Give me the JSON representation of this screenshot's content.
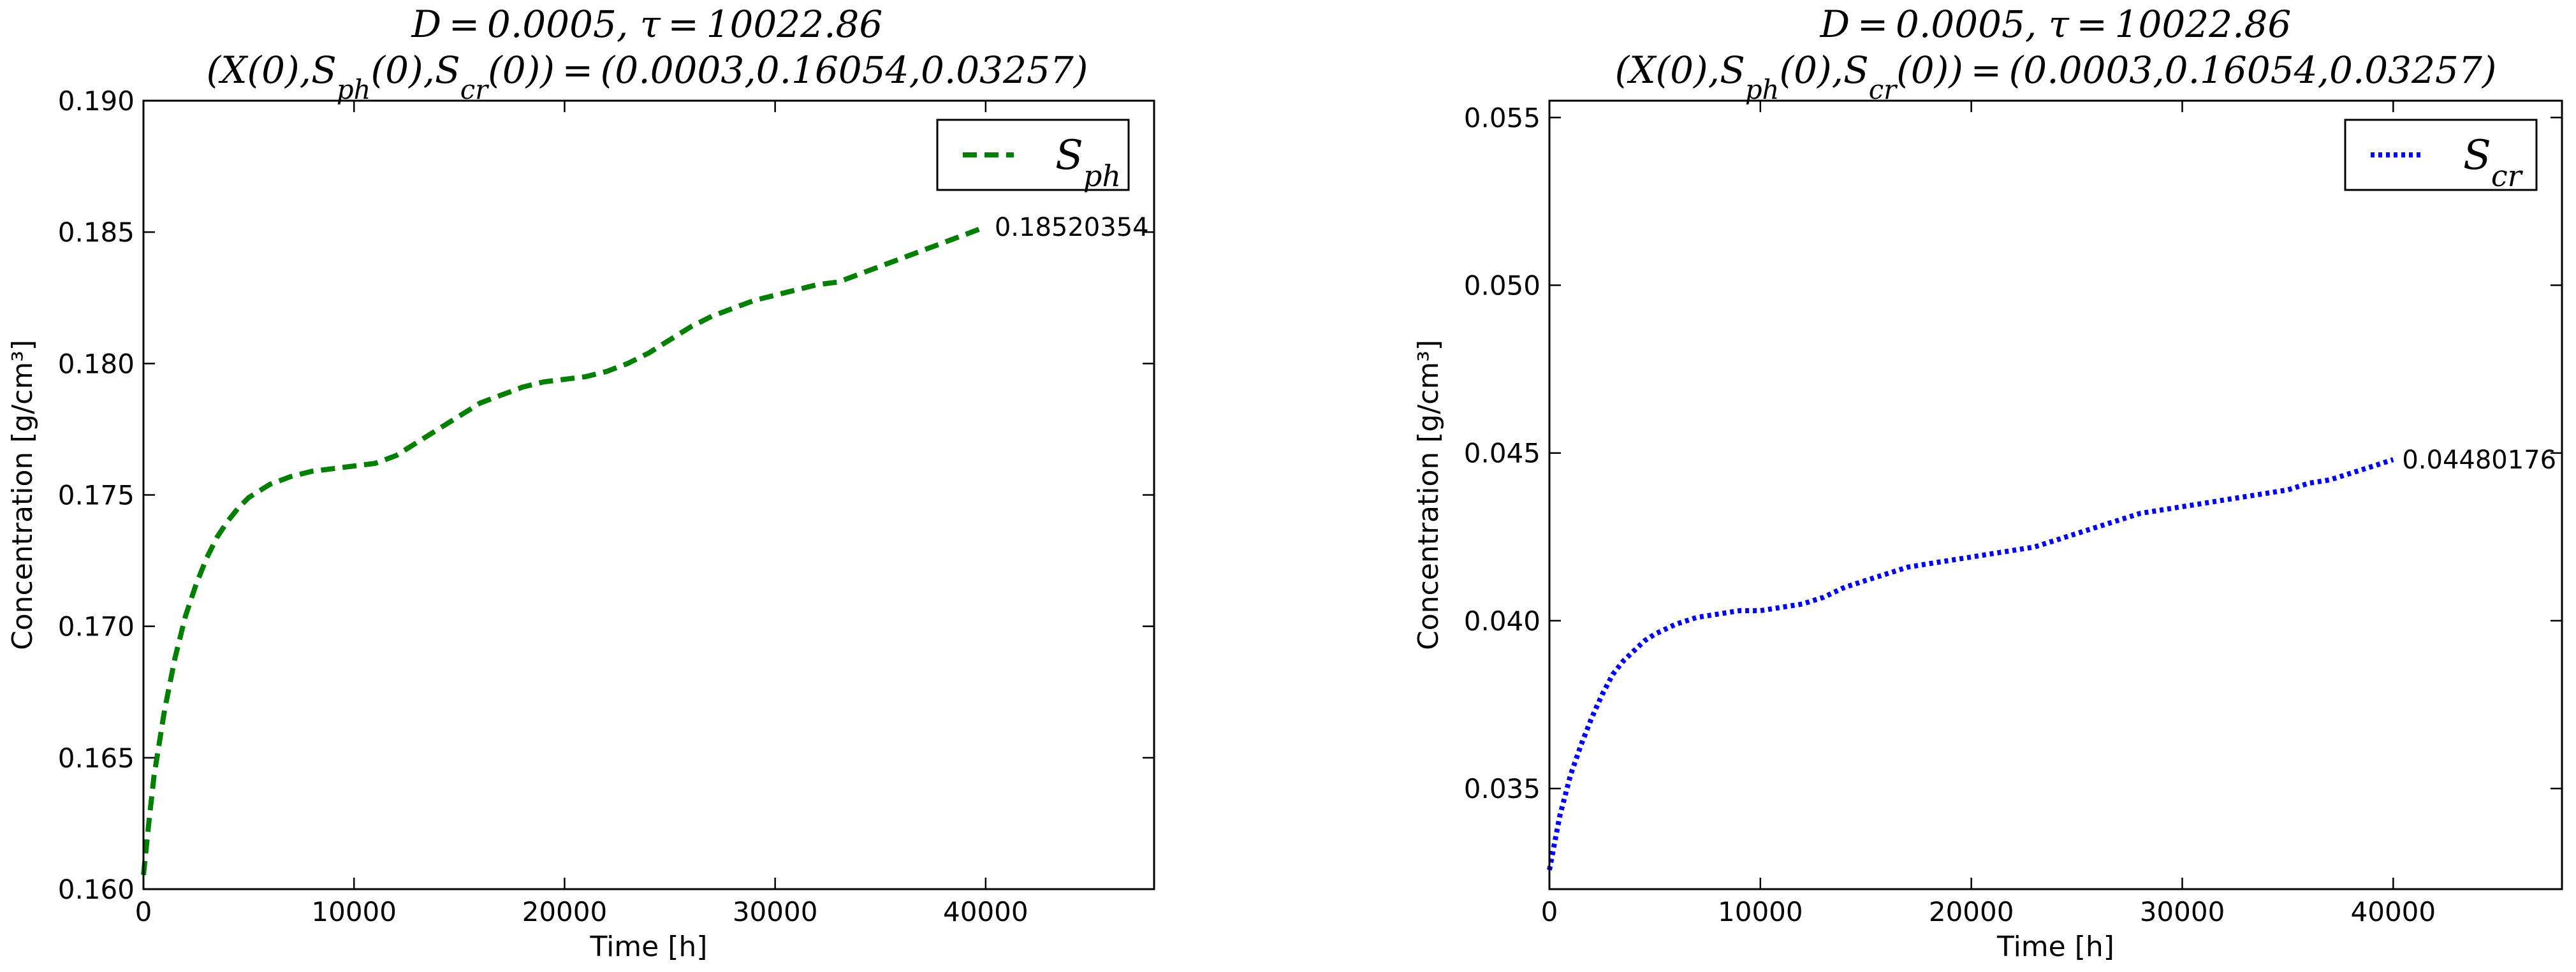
{
  "chart_data": [
    {
      "type": "line",
      "title_line1": "D = 0.0005,   τ = 10022.86",
      "title_line2": "(X(0),S_ph(0),S_cr(0)) = (0.0003,0.16054,0.03257)",
      "xlabel": "Time [h]",
      "ylabel": "Concentration [g/cm³]",
      "xlim": [
        0,
        48000
      ],
      "ylim": [
        0.16,
        0.19
      ],
      "xticks": [
        0,
        10000,
        20000,
        30000,
        40000
      ],
      "yticks": [
        0.16,
        0.165,
        0.17,
        0.175,
        0.18,
        0.185,
        0.19
      ],
      "ytick_decimals": 3,
      "grid": false,
      "legend_position": "top-right",
      "series": [
        {
          "name": "S_ph",
          "color": "#007f00",
          "linestyle": "dashed",
          "x": [
            0,
            250,
            500,
            1000,
            1500,
            2000,
            2500,
            3000,
            3500,
            4000,
            4500,
            5000,
            6000,
            7000,
            8000,
            9000,
            10000,
            11000,
            12000,
            13000,
            14000,
            15000,
            16000,
            17000,
            18000,
            19000,
            20000,
            21000,
            22000,
            23000,
            24000,
            25000,
            26000,
            27000,
            28000,
            29000,
            30000,
            31000,
            32000,
            33000,
            34000,
            35000,
            36000,
            37000,
            38000,
            39000,
            40000
          ],
          "y": [
            0.16054,
            0.1625,
            0.1643,
            0.1668,
            0.1688,
            0.1704,
            0.1716,
            0.1726,
            0.1734,
            0.174,
            0.1745,
            0.1749,
            0.1754,
            0.1757,
            0.1759,
            0.176,
            0.1761,
            0.1762,
            0.1765,
            0.177,
            0.1775,
            0.178,
            0.1785,
            0.1788,
            0.1791,
            0.1793,
            0.1794,
            0.1795,
            0.1797,
            0.18,
            0.1804,
            0.1809,
            0.1814,
            0.1818,
            0.1821,
            0.1824,
            0.1826,
            0.1828,
            0.183,
            0.1831,
            0.1834,
            0.1837,
            0.184,
            0.1843,
            0.1846,
            0.1849,
            0.18520354
          ]
        }
      ],
      "annotation": {
        "text": "0.18520354",
        "x": 40000,
        "y": 0.18520354
      }
    },
    {
      "type": "line",
      "title_line1": "D = 0.0005,   τ = 10022.86",
      "title_line2": "(X(0),S_ph(0),S_cr(0)) = (0.0003,0.16054,0.03257)",
      "xlabel": "Time [h]",
      "ylabel": "Concentration [g/cm³]",
      "xlim": [
        0,
        48000
      ],
      "ylim": [
        0.032,
        0.0555
      ],
      "xticks": [
        0,
        10000,
        20000,
        30000,
        40000
      ],
      "yticks": [
        0.035,
        0.04,
        0.045,
        0.05,
        0.055
      ],
      "ytick_decimals": 3,
      "grid": false,
      "legend_position": "top-right",
      "series": [
        {
          "name": "S_cr",
          "color": "#0000ff",
          "linestyle": "dotted",
          "x": [
            0,
            250,
            500,
            1000,
            1500,
            2000,
            2500,
            3000,
            3500,
            4000,
            4500,
            5000,
            6000,
            7000,
            8000,
            9000,
            10000,
            11000,
            12000,
            13000,
            14000,
            15000,
            16000,
            17000,
            18000,
            19000,
            20000,
            21000,
            22000,
            23000,
            24000,
            25000,
            26000,
            27000,
            28000,
            29000,
            30000,
            31000,
            32000,
            33000,
            34000,
            35000,
            36000,
            37000,
            38000,
            39000,
            40000
          ],
          "y": [
            0.03257,
            0.0334,
            0.0342,
            0.0354,
            0.0363,
            0.0371,
            0.0378,
            0.0384,
            0.0388,
            0.0391,
            0.0394,
            0.0396,
            0.0399,
            0.0401,
            0.0402,
            0.0403,
            0.0403,
            0.0404,
            0.0405,
            0.0407,
            0.041,
            0.0412,
            0.0414,
            0.0416,
            0.0417,
            0.0418,
            0.0419,
            0.042,
            0.0421,
            0.0422,
            0.0424,
            0.0426,
            0.0428,
            0.043,
            0.0432,
            0.0433,
            0.0434,
            0.0435,
            0.0436,
            0.0437,
            0.0438,
            0.0439,
            0.0441,
            0.0442,
            0.0444,
            0.0446,
            0.04480176
          ]
        }
      ],
      "annotation": {
        "text": "0.04480176",
        "x": 40000,
        "y": 0.04480176
      }
    }
  ]
}
